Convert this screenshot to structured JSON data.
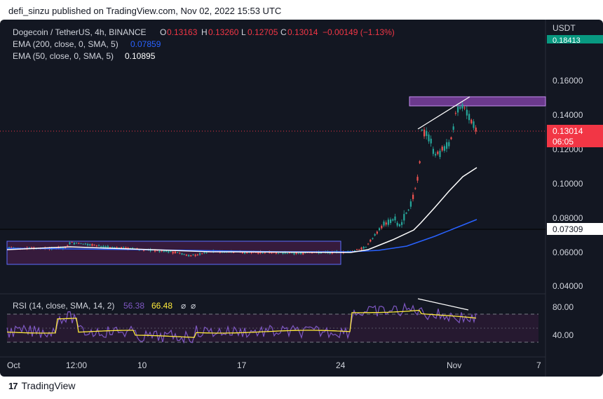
{
  "publisher_line": "defi_sinzu published on TradingView.com, Nov 02, 2022 15:53 UTC",
  "brand": "TradingView",
  "legend": {
    "symbol": "Dogecoin / TetherUS, 4h, BINANCE",
    "open_label": "O",
    "open": "0.13163",
    "high_label": "H",
    "high": "0.13260",
    "low_label": "L",
    "low": "0.12705",
    "close_label": "C",
    "close": "0.13014",
    "change": "−0.00149 (−1.13%)",
    "ema200_label": "EMA (200, close, 0, SMA, 5)",
    "ema200_value": "0.07859",
    "ema50_label": "EMA (50, close, 0, SMA, 5)",
    "ema50_value": "0.10895"
  },
  "rsi_legend": {
    "label": "RSI (14, close, SMA, 14, 2)",
    "rsi": "56.38",
    "sma": "66.48",
    "icon1": "⌀",
    "icon2": "⌀"
  },
  "currency": "USDT",
  "price_ticks": [
    "0.18413",
    "0.16000",
    "0.14000",
    "0.12000",
    "0.10000",
    "0.08000",
    "0.06000",
    "0.04000"
  ],
  "rsi_ticks": [
    "80.00",
    "40.00"
  ],
  "last_price_tag": "0.13014",
  "countdown_tag": "06:05",
  "crosshair_tag": "0.07309",
  "time_ticks": [
    "Oct",
    "12:00",
    "10",
    "17",
    "24",
    "Nov",
    "7"
  ],
  "colors": {
    "background": "#131722",
    "up": "#26a69a",
    "down": "#ef5350",
    "ema200": "#2962ff",
    "ema50": "#ffffff",
    "rsi_line": "#7e57c2",
    "rsi_sma": "#ffeb3b",
    "zone_fill": "#4a1d4b",
    "zone_border": "#5b6cff",
    "resistance_fill": "#7b3fa0",
    "last_price": "#f23645",
    "green_tag": "#089981"
  },
  "chart_data": {
    "type": "candlestick",
    "x": [
      "Oct",
      "12:00",
      "10",
      "17",
      "24",
      "Nov",
      "7"
    ],
    "price_range": [
      0.035,
      0.19
    ],
    "key_levels": {
      "last_price": 0.13014,
      "horizontal_line": 0.07309,
      "resistance_zone": [
        0.145,
        0.15
      ],
      "range_zone": [
        0.053,
        0.066
      ]
    },
    "series": [
      {
        "name": "EMA (200, close, 0, SMA, 5)",
        "last": 0.07859
      },
      {
        "name": "EMA (50, close, 0, SMA, 5)",
        "last": 0.10895
      }
    ],
    "rsi": {
      "range": [
        20,
        100
      ],
      "last": 56.38,
      "sma_last": 66.48,
      "bands": [
        70,
        30
      ]
    }
  }
}
